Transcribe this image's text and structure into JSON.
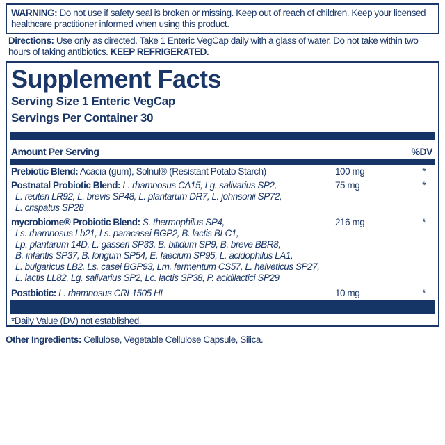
{
  "warning": {
    "label": "WARNING:",
    "text": " Do not use if safety seal is broken or missing. Keep out of reach of children. Keep your licensed healthcare practitioner informed when using this product."
  },
  "directions": {
    "label": "Directions:",
    "text": " Use only as directed. Take 1 Enteric VegCap daily with a glass of water. Do not take within two hours of taking antibiotics. ",
    "emphasis": "KEEP REFRIGERATED."
  },
  "facts": {
    "title": "Supplement Facts",
    "serving_size": "Serving Size 1 Enteric VegCap",
    "servings_per_container": "Servings Per Container 30",
    "amount_header": "Amount Per Serving",
    "dv_header": "%DV",
    "rows": [
      {
        "label": "Prebiotic Blend:",
        "text": " Acacia (gum), Solnul® (Resistant Potato Starch)",
        "lines": [],
        "amount": "100 mg",
        "dv": "*"
      },
      {
        "label": "Postnatal Probiotic Blend:",
        "text": " L. rhamnosus CA15, Lg. salivarius SP2,",
        "lines": [
          "L. reuteri LR92, L. brevis SP48, L. plantarum DR7, L. johnsonii SP72,",
          "L. crispatus SP28"
        ],
        "amount": "75 mg",
        "dv": "*"
      },
      {
        "label": "mycrobiome® Probiotic Blend:",
        "text": " S. thermophilus SP4,",
        "lines": [
          "Ls. rhamnosus Lb21, Ls. paracasei BGP2, B. lactis BLC1,",
          "Lp. plantarum 14D, L. gasseri SP33, B. bifidum SP9, B. breve BBR8,",
          "B. infantis SP37, B. longum SP54, E. faecium SP95, L. acidophilus LA1,",
          "L. bulgaricus LB2, Ls. casei BGP93, Lm. fermentum CS57, L. helveticus SP27,",
          "L. lactis LL82, Lg. salivarius SP2, Lc. lactis SP38, P. acidilactici SP29"
        ],
        "amount": "216 mg",
        "dv": "*"
      },
      {
        "label": "Postbiotic:",
        "text": " L. rhamnosus CRL1505 HI",
        "lines": [],
        "amount": "10 mg",
        "dv": "*"
      }
    ],
    "footnote": "*Daily Value (DV) not established."
  },
  "other_ingredients": {
    "label": "Other Ingredients:",
    "text": " Cellulose, Vegetable Cellulose Capsule, Silica."
  },
  "colors": {
    "text": "#1b3768",
    "bar": "#143566"
  }
}
